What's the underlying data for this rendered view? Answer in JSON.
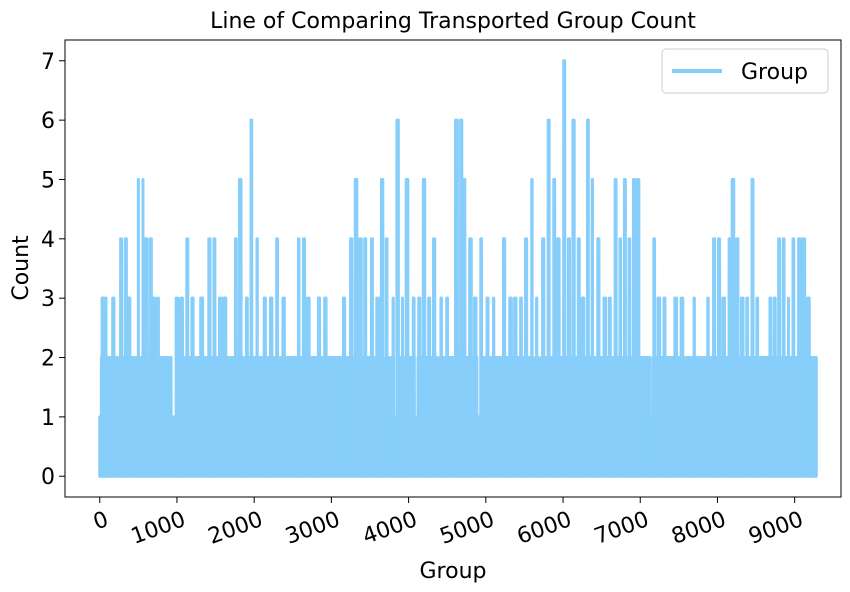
{
  "chart_data": {
    "type": "line",
    "title": "Line of Comparing Transported Group Count",
    "xlabel": "Group",
    "ylabel": "Count",
    "xlim": [
      -450,
      9600
    ],
    "ylim": [
      -0.35,
      7.35
    ],
    "x_ticks": [
      0,
      1000,
      2000,
      3000,
      4000,
      5000,
      6000,
      7000,
      8000,
      9000
    ],
    "x_tick_labels": [
      "0",
      "1000",
      "2000",
      "3000",
      "4000",
      "5000",
      "6000",
      "7000",
      "8000",
      "9000"
    ],
    "y_ticks": [
      0,
      1,
      2,
      3,
      4,
      5,
      6,
      7
    ],
    "y_tick_labels": [
      "0",
      "1",
      "2",
      "3",
      "4",
      "5",
      "6",
      "7"
    ],
    "legend_position": "top-right",
    "grid": false,
    "series": [
      {
        "name": "Group",
        "color": "#87CEFA",
        "x_start": 0,
        "x_end": 9280,
        "value_min": 0,
        "value_max": 7,
        "note": "dense oscillation between 0 and the peak counts listed",
        "peaks": [
          {
            "x": 0,
            "y": 1
          },
          {
            "x": 40,
            "y": 3
          },
          {
            "x": 80,
            "y": 3
          },
          {
            "x": 120,
            "y": 2
          },
          {
            "x": 180,
            "y": 3
          },
          {
            "x": 280,
            "y": 4
          },
          {
            "x": 340,
            "y": 4
          },
          {
            "x": 380,
            "y": 3
          },
          {
            "x": 500,
            "y": 5
          },
          {
            "x": 560,
            "y": 5
          },
          {
            "x": 600,
            "y": 4
          },
          {
            "x": 660,
            "y": 4
          },
          {
            "x": 700,
            "y": 3
          },
          {
            "x": 760,
            "y": 3
          },
          {
            "x": 880,
            "y": 2
          },
          {
            "x": 1000,
            "y": 3
          },
          {
            "x": 1060,
            "y": 3
          },
          {
            "x": 1140,
            "y": 4
          },
          {
            "x": 1200,
            "y": 3
          },
          {
            "x": 1320,
            "y": 3
          },
          {
            "x": 1420,
            "y": 4
          },
          {
            "x": 1480,
            "y": 4
          },
          {
            "x": 1560,
            "y": 3
          },
          {
            "x": 1620,
            "y": 3
          },
          {
            "x": 1760,
            "y": 4
          },
          {
            "x": 1820,
            "y": 5
          },
          {
            "x": 1900,
            "y": 3
          },
          {
            "x": 1960,
            "y": 6
          },
          {
            "x": 2040,
            "y": 4
          },
          {
            "x": 2140,
            "y": 3
          },
          {
            "x": 2220,
            "y": 3
          },
          {
            "x": 2300,
            "y": 4
          },
          {
            "x": 2380,
            "y": 3
          },
          {
            "x": 2500,
            "y": 2
          },
          {
            "x": 2580,
            "y": 4
          },
          {
            "x": 2640,
            "y": 4
          },
          {
            "x": 2700,
            "y": 3
          },
          {
            "x": 2780,
            "y": 2
          },
          {
            "x": 2840,
            "y": 3
          },
          {
            "x": 2920,
            "y": 3
          },
          {
            "x": 3060,
            "y": 2
          },
          {
            "x": 3160,
            "y": 3
          },
          {
            "x": 3260,
            "y": 4
          },
          {
            "x": 3320,
            "y": 5
          },
          {
            "x": 3380,
            "y": 4
          },
          {
            "x": 3440,
            "y": 4
          },
          {
            "x": 3520,
            "y": 4
          },
          {
            "x": 3600,
            "y": 3
          },
          {
            "x": 3660,
            "y": 5
          },
          {
            "x": 3720,
            "y": 4
          },
          {
            "x": 3800,
            "y": 3
          },
          {
            "x": 3860,
            "y": 6
          },
          {
            "x": 3920,
            "y": 3
          },
          {
            "x": 3980,
            "y": 5
          },
          {
            "x": 4060,
            "y": 3
          },
          {
            "x": 4140,
            "y": 3
          },
          {
            "x": 4200,
            "y": 5
          },
          {
            "x": 4260,
            "y": 3
          },
          {
            "x": 4330,
            "y": 4
          },
          {
            "x": 4420,
            "y": 3
          },
          {
            "x": 4500,
            "y": 3
          },
          {
            "x": 4560,
            "y": 2
          },
          {
            "x": 4620,
            "y": 6
          },
          {
            "x": 4680,
            "y": 6
          },
          {
            "x": 4720,
            "y": 5
          },
          {
            "x": 4800,
            "y": 4
          },
          {
            "x": 4860,
            "y": 3
          },
          {
            "x": 4940,
            "y": 4
          },
          {
            "x": 5020,
            "y": 3
          },
          {
            "x": 5100,
            "y": 3
          },
          {
            "x": 5180,
            "y": 2
          },
          {
            "x": 5240,
            "y": 4
          },
          {
            "x": 5320,
            "y": 3
          },
          {
            "x": 5380,
            "y": 3
          },
          {
            "x": 5460,
            "y": 3
          },
          {
            "x": 5520,
            "y": 4
          },
          {
            "x": 5600,
            "y": 5
          },
          {
            "x": 5660,
            "y": 3
          },
          {
            "x": 5740,
            "y": 4
          },
          {
            "x": 5820,
            "y": 6
          },
          {
            "x": 5880,
            "y": 5
          },
          {
            "x": 5940,
            "y": 4
          },
          {
            "x": 6020,
            "y": 7
          },
          {
            "x": 6080,
            "y": 4
          },
          {
            "x": 6140,
            "y": 6
          },
          {
            "x": 6200,
            "y": 4
          },
          {
            "x": 6260,
            "y": 3
          },
          {
            "x": 6320,
            "y": 6
          },
          {
            "x": 6380,
            "y": 5
          },
          {
            "x": 6460,
            "y": 4
          },
          {
            "x": 6540,
            "y": 3
          },
          {
            "x": 6600,
            "y": 3
          },
          {
            "x": 6680,
            "y": 5
          },
          {
            "x": 6740,
            "y": 4
          },
          {
            "x": 6800,
            "y": 5
          },
          {
            "x": 6860,
            "y": 4
          },
          {
            "x": 6920,
            "y": 5
          },
          {
            "x": 6980,
            "y": 5
          },
          {
            "x": 7040,
            "y": 2
          },
          {
            "x": 7120,
            "y": 2
          },
          {
            "x": 7180,
            "y": 4
          },
          {
            "x": 7240,
            "y": 3
          },
          {
            "x": 7320,
            "y": 3
          },
          {
            "x": 7400,
            "y": 2
          },
          {
            "x": 7460,
            "y": 3
          },
          {
            "x": 7540,
            "y": 3
          },
          {
            "x": 7620,
            "y": 2
          },
          {
            "x": 7700,
            "y": 3
          },
          {
            "x": 7800,
            "y": 2
          },
          {
            "x": 7880,
            "y": 3
          },
          {
            "x": 7960,
            "y": 4
          },
          {
            "x": 8020,
            "y": 4
          },
          {
            "x": 8080,
            "y": 3
          },
          {
            "x": 8160,
            "y": 4
          },
          {
            "x": 8200,
            "y": 5
          },
          {
            "x": 8260,
            "y": 4
          },
          {
            "x": 8320,
            "y": 3
          },
          {
            "x": 8380,
            "y": 3
          },
          {
            "x": 8460,
            "y": 5
          },
          {
            "x": 8520,
            "y": 3
          },
          {
            "x": 8600,
            "y": 2
          },
          {
            "x": 8680,
            "y": 3
          },
          {
            "x": 8740,
            "y": 3
          },
          {
            "x": 8800,
            "y": 4
          },
          {
            "x": 8860,
            "y": 4
          },
          {
            "x": 8920,
            "y": 3
          },
          {
            "x": 8980,
            "y": 4
          },
          {
            "x": 9060,
            "y": 4
          },
          {
            "x": 9120,
            "y": 4
          },
          {
            "x": 9180,
            "y": 3
          },
          {
            "x": 9240,
            "y": 2
          },
          {
            "x": 9280,
            "y": 2
          }
        ]
      }
    ]
  }
}
